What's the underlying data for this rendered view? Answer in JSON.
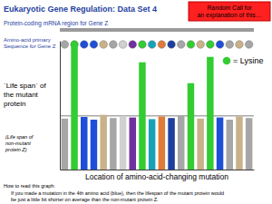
{
  "chart_data": {
    "type": "bar",
    "title": "Eukaryotic Gene Regulation: Data Set 4",
    "callout": [
      "Random Call for",
      "an explanation of this…"
    ],
    "mrna_label": "Protein-coding mRNA region for Gene Z",
    "sequence_label": [
      "Amino-acid primary",
      "Sequence for Gene Z"
    ],
    "key": {
      "text": "= Lysine",
      "color": "#33cc33"
    },
    "y_label": [
      "ˋLife spanˊ of",
      "the mutant",
      "protein"
    ],
    "x_label": "Location of amino-acid-changing mutation",
    "reference_line": {
      "value": 100,
      "label": [
        "(Life span of",
        "non-mutant",
        "protein Z)"
      ]
    },
    "annotations": [
      "How to read this graph:",
      "If you made a mutation in the 4th amino acid (blue), then the lifespan of the mutant protein would",
      "be just a little bit shorter on average than the non-mutant protein Z."
    ],
    "categories": [
      null,
      null,
      null,
      null,
      null,
      null,
      null,
      null,
      null,
      null,
      null,
      null,
      null,
      null,
      null,
      null,
      null,
      null,
      null,
      null
    ],
    "values": [
      95,
      232,
      98,
      93,
      102,
      96,
      100,
      97,
      200,
      94,
      99,
      96,
      101,
      161,
      95,
      210,
      97,
      93,
      99,
      96
    ],
    "colors": [
      "#a6a6a6",
      "#33cc33",
      "#1f4fd8",
      "#1f4fd8",
      "#c9b28a",
      "#a6a6a6",
      "#d0d0d0",
      "#7030a0",
      "#33cc33",
      "#17a2b8",
      "#e07b39",
      "#1f3f9f",
      "#a6a6a6",
      "#33cc33",
      "#c9b28a",
      "#33cc33",
      "#1f4fd8",
      "#a6a6a6",
      "#c9b28a",
      "#a6a6a6"
    ],
    "ylim": [
      0,
      240
    ],
    "tick_labels": false
  }
}
